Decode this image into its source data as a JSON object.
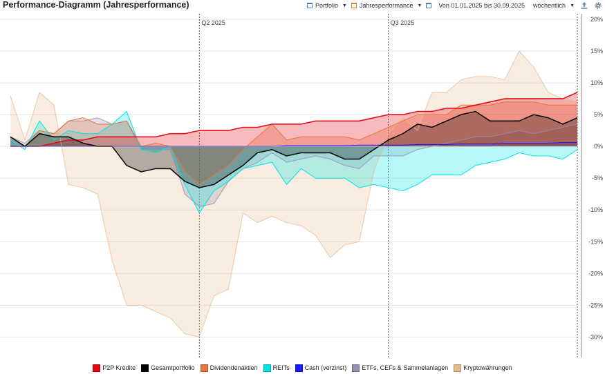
{
  "header": {
    "title": "Performance-Diagramm (Jahresperformance)",
    "portfolio_label": "Portfolio",
    "mode_label": "Jahresperformance",
    "date_range": "Von 01.01.2025 bis 30.09.2025",
    "interval": "wöchentlich"
  },
  "colors": {
    "p2p": "#e30613",
    "gesamt": "#000000",
    "dividende": "#e8763f",
    "reits": "#00e5e5",
    "cash": "#1a1aff",
    "etf": "#9a8fb0",
    "krypto": "#e8b98e"
  },
  "chart_data": {
    "type": "area",
    "title": "Performance-Diagramm (Jahresperformance)",
    "ylabel": "",
    "xlabel": "",
    "ylim": [
      -33,
      20
    ],
    "yticks": [
      20,
      15,
      10,
      5,
      0,
      -5,
      -10,
      -15,
      -20,
      -25,
      -30
    ],
    "ytick_labels": [
      "20%",
      "15%",
      "10%",
      "5%",
      "0%",
      "-5%",
      "-10%",
      "-15%",
      "-20%",
      "-25%",
      "-30%"
    ],
    "grid": true,
    "legend_position": "bottom",
    "period_markers": [
      {
        "label": "Q2 2025",
        "x": 13
      },
      {
        "label": "Q3 2025",
        "x": 26
      }
    ],
    "x": [
      0,
      1,
      2,
      3,
      4,
      5,
      6,
      7,
      8,
      9,
      10,
      11,
      12,
      13,
      14,
      15,
      16,
      17,
      18,
      19,
      20,
      21,
      22,
      23,
      24,
      25,
      26,
      27,
      28,
      29,
      30,
      31,
      32,
      33,
      34,
      35,
      36,
      37,
      38,
      39
    ],
    "series": [
      {
        "name": "Kryptowährungen",
        "key": "krypto",
        "values": [
          8,
          1,
          8.5,
          6.5,
          -6,
          -6.5,
          -7.5,
          -18,
          -25,
          -25,
          -26,
          -27,
          -29.5,
          -30,
          -23.5,
          -22.5,
          -10.5,
          -12,
          -11,
          -12,
          -12.5,
          -14,
          -17.5,
          -15.5,
          -15,
          -4,
          2,
          4.5,
          2.5,
          8.5,
          8.5,
          10.5,
          11,
          11,
          10.5,
          15,
          12.5,
          8.5,
          7.5,
          7
        ]
      },
      {
        "name": "ETFs, CEFs & Sammelanlagen",
        "key": "etf",
        "values": [
          1.5,
          0.5,
          2.5,
          2,
          4,
          4,
          4.5,
          3.5,
          4,
          -0.5,
          -0.5,
          -0.5,
          -7.5,
          -9.5,
          -9,
          -5.5,
          -3.5,
          -2.5,
          -1,
          -2.5,
          -2,
          -1.5,
          -2,
          -3,
          -3.5,
          -1.5,
          -1.5,
          -1.5,
          -0.5,
          0,
          0.5,
          1,
          1.5,
          1.5,
          2,
          2.5,
          2,
          2.5,
          3,
          3.5
        ]
      },
      {
        "name": "REITs",
        "key": "reits",
        "values": [
          1,
          -0.5,
          4,
          1,
          2.5,
          2,
          2,
          3.5,
          5.5,
          -0.5,
          -1,
          0,
          -6,
          -10.5,
          -7,
          -5.5,
          -3.5,
          -3,
          -2.5,
          -6,
          -3.5,
          -5,
          -5,
          -5,
          -6.5,
          -6,
          -6.5,
          -7,
          -6,
          -4.5,
          -4.5,
          -4.5,
          -3,
          -2.5,
          -2,
          -1,
          -1.5,
          -1.5,
          -2,
          -0.5
        ]
      },
      {
        "name": "Dividendenaktien",
        "key": "dividende",
        "values": [
          0,
          0,
          2.5,
          2,
          4,
          4.5,
          3.5,
          3.5,
          4,
          0,
          0.5,
          0,
          -4,
          -6,
          -4.5,
          -3,
          -0.5,
          1.5,
          3.5,
          1,
          1.5,
          1.5,
          1.5,
          1.5,
          1,
          2,
          3,
          4,
          5,
          5,
          5,
          6.5,
          6.5,
          6.5,
          7,
          7,
          7,
          6.5,
          6.5,
          6.5
        ]
      },
      {
        "name": "P2P Kredite",
        "key": "p2p",
        "values": [
          0,
          0,
          0,
          0.5,
          1,
          1,
          1.5,
          1.5,
          1.5,
          1.5,
          1.5,
          2,
          2,
          2.5,
          2.5,
          2.5,
          3,
          3,
          3.5,
          3.5,
          3.5,
          4,
          4,
          4,
          4,
          4.5,
          5,
          5,
          5.5,
          5.5,
          6,
          6,
          6.5,
          7,
          7.5,
          7.5,
          7.5,
          7.5,
          7.5,
          8.5
        ]
      },
      {
        "name": "Cash (verzinst)",
        "key": "cash",
        "values": [
          0,
          0,
          0,
          0,
          0,
          0,
          0,
          0,
          0,
          0,
          0,
          0,
          0,
          0,
          0,
          0,
          0,
          0,
          0,
          0.1,
          0.1,
          0.1,
          0.1,
          0.1,
          0.2,
          0.2,
          0.2,
          0.2,
          0.3,
          0.3,
          0.3,
          0.4,
          0.4,
          0.4,
          0.5,
          0.5,
          0.5,
          0.5,
          0.6,
          0.6
        ]
      },
      {
        "name": "Gesamtportfolio",
        "key": "gesamt",
        "values": [
          1.5,
          0,
          2,
          1.5,
          1.5,
          0.5,
          0,
          0,
          -3,
          -4,
          -3.5,
          -3.5,
          -5.5,
          -6.5,
          -6,
          -4.5,
          -3,
          -1,
          -0.5,
          -1.5,
          -1,
          -1,
          -1,
          -2,
          -2,
          -0.5,
          1,
          2,
          3.5,
          3,
          4,
          5,
          5.5,
          4,
          4,
          4,
          5,
          4.5,
          3.5,
          4.5
        ]
      }
    ],
    "legend": [
      "P2P Kredite",
      "Gesamtportfolio",
      "Dividendenaktien",
      "REITs",
      "Cash (verzinst)",
      "ETFs, CEFs & Sammelanlagen",
      "Kryptowährungen"
    ],
    "legend_keys": [
      "p2p",
      "gesamt",
      "dividende",
      "reits",
      "cash",
      "etf",
      "krypto"
    ]
  }
}
